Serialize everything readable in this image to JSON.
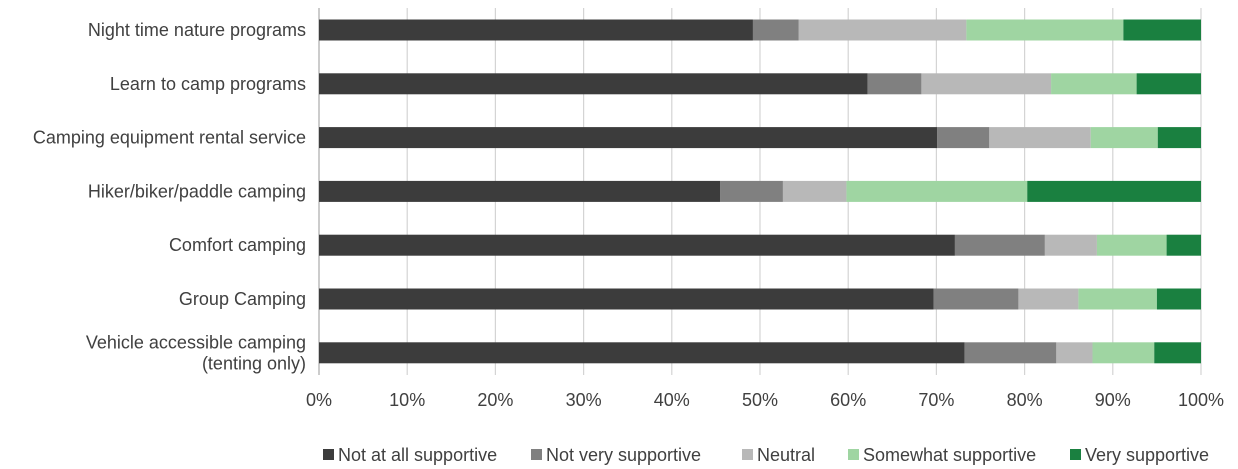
{
  "chart_data": {
    "type": "bar",
    "orientation": "horizontal",
    "stacked": "100%",
    "categories": [
      [
        "Night time nature programs"
      ],
      [
        "Learn to camp programs"
      ],
      [
        "Camping equipment rental service"
      ],
      [
        "Hiker/biker/paddle camping"
      ],
      [
        "Comfort camping"
      ],
      [
        "Group Camping"
      ],
      [
        "Vehicle accessible camping",
        "(tenting only)"
      ]
    ],
    "series": [
      {
        "name": "Not at all supportive",
        "color": "#3c3c3c",
        "values": [
          49.2,
          62.2,
          70.1,
          45.5,
          72.1,
          69.7,
          73.2
        ]
      },
      {
        "name": "Not very supportive",
        "color": "#808080",
        "values": [
          5.2,
          6.1,
          5.9,
          7.1,
          10.2,
          9.6,
          10.4
        ]
      },
      {
        "name": "Neutral",
        "color": "#b8b8b8",
        "values": [
          19.0,
          14.7,
          11.5,
          7.2,
          5.9,
          6.8,
          4.1
        ]
      },
      {
        "name": "Somewhat supportive",
        "color": "#9fd5a2",
        "values": [
          17.8,
          9.7,
          7.6,
          20.5,
          7.9,
          8.9,
          7.0
        ]
      },
      {
        "name": "Very supportive",
        "color": "#1a8040",
        "values": [
          8.8,
          7.3,
          4.9,
          19.7,
          3.9,
          5.0,
          5.3
        ]
      }
    ],
    "xlim": [
      0,
      100
    ],
    "xticks": [
      "0%",
      "10%",
      "20%",
      "30%",
      "40%",
      "50%",
      "60%",
      "70%",
      "80%",
      "90%",
      "100%"
    ],
    "grid": "vertical",
    "legend": "bottom"
  }
}
